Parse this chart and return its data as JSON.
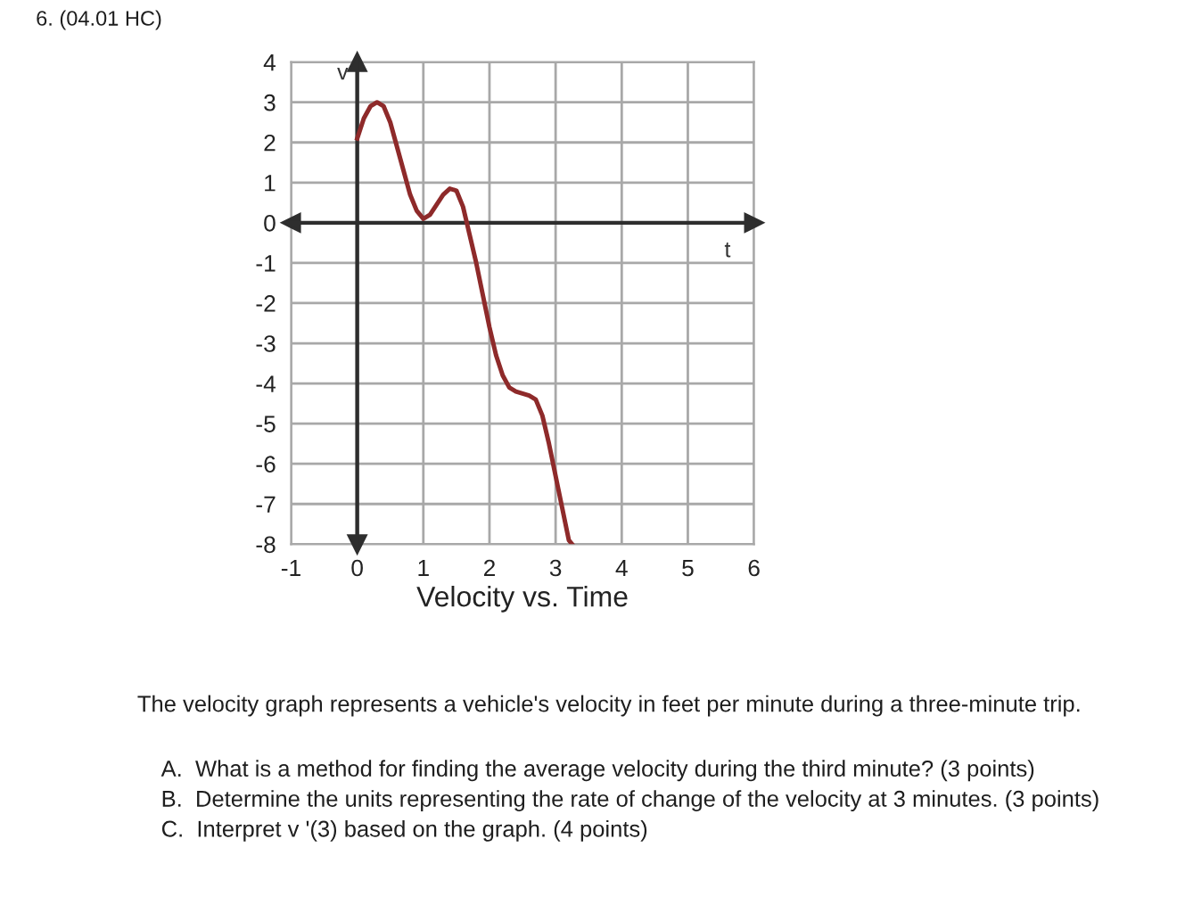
{
  "chart_data": {
    "type": "line",
    "title": "Velocity vs. Time",
    "xlabel": "t",
    "ylabel": "v",
    "annotations": [
      "6. (04.01 HC)",
      "The velocity graph represents a vehicle's velocity in feet per minute during a three-minute trip.",
      "A.  What is a method for finding the average velocity during the third minute? (3 points)",
      "B.  Determine the units representing the rate of change of the velocity at 3 minutes. (3 points)",
      "C.  Interpret v '(3) based on the graph. (4 points)"
    ],
    "series": [
      {
        "color": "#8e2a2a",
        "x": [
          0,
          0.1,
          0.2,
          0.3,
          0.4,
          0.5,
          0.6,
          0.7,
          0.8,
          0.9,
          1.0,
          1.1,
          1.2,
          1.3,
          1.4,
          1.5,
          1.6,
          1.7,
          1.8,
          1.9,
          2.0,
          2.1,
          2.2,
          2.3,
          2.4,
          2.5,
          2.6,
          2.7,
          2.8,
          2.9,
          3.0,
          3.1,
          3.2,
          3.25
        ],
        "values": [
          2.1,
          2.6,
          2.9,
          3.0,
          2.9,
          2.5,
          1.9,
          1.3,
          0.7,
          0.3,
          0.1,
          0.2,
          0.45,
          0.7,
          0.85,
          0.8,
          0.4,
          -0.3,
          -1.0,
          -1.8,
          -2.6,
          -3.3,
          -3.8,
          -4.1,
          -4.2,
          -4.25,
          -4.3,
          -4.4,
          -4.8,
          -5.5,
          -6.3,
          -7.1,
          -7.9,
          -8
        ]
      }
    ],
    "xlim": [
      -1,
      6
    ],
    "ylim": [
      -8,
      4
    ],
    "xticks": [
      -1,
      0,
      1,
      2,
      3,
      4,
      5,
      6
    ],
    "yticks": [
      -8,
      -7,
      -6,
      -5,
      -4,
      -3,
      -2,
      -1,
      0,
      1,
      2,
      3,
      4
    ],
    "grid": true,
    "legend": false,
    "marker": "none",
    "line_style": "solid"
  }
}
